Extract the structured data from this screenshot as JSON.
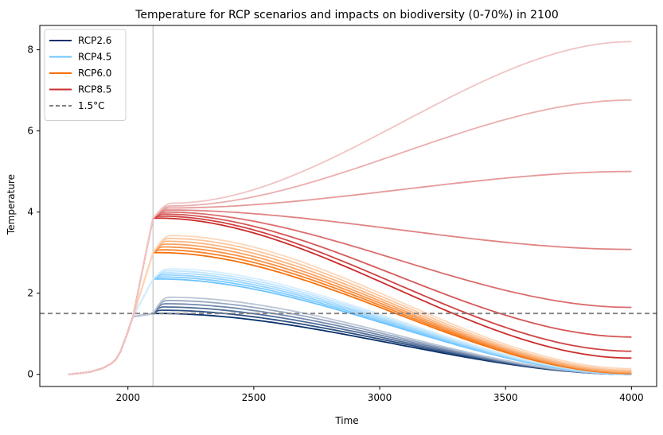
{
  "chart_data": {
    "type": "line",
    "title": "Temperature for RCP scenarios and impacts on biodiversity (0-70%) in 2100",
    "xlabel": "Time",
    "ylabel": "Temperature",
    "xlim": [
      1650,
      4100
    ],
    "ylim": [
      -0.3,
      8.6
    ],
    "xticks": [
      2000,
      2500,
      3000,
      3500,
      4000
    ],
    "yticks": [
      0,
      2,
      4,
      6,
      8
    ],
    "grid": false,
    "legend_position": "upper-left",
    "vline_x": 2100,
    "reference_line": {
      "name": "1.5°C",
      "y": 1.5,
      "style": "dashed",
      "color": "#808080"
    },
    "historical": {
      "x": [
        1765,
        1800,
        1850,
        1900,
        1930,
        1950,
        1970,
        1985,
        2000,
        2010,
        2020,
        2030,
        2040
      ],
      "y": [
        0.0,
        0.02,
        0.06,
        0.15,
        0.25,
        0.35,
        0.55,
        0.8,
        1.05,
        1.25,
        1.42,
        1.55,
        1.62
      ]
    },
    "series": [
      {
        "name": "RCP2.6",
        "color": "#08306b",
        "t2100": 1.5,
        "members": [
          {
            "peak": 1.5,
            "y_end": 0.0
          },
          {
            "peak": 1.58,
            "y_end": 0.0
          },
          {
            "peak": 1.66,
            "y_end": 0.0
          },
          {
            "peak": 1.74,
            "y_end": 0.0
          },
          {
            "peak": 1.82,
            "y_end": 0.0
          },
          {
            "peak": 1.9,
            "y_end": 0.0
          }
        ]
      },
      {
        "name": "RCP4.5",
        "color": "#6cc3ff",
        "t2100": 2.35,
        "members": [
          {
            "peak": 2.35,
            "y_end": 0.0
          },
          {
            "peak": 2.4,
            "y_end": 0.0
          },
          {
            "peak": 2.45,
            "y_end": 0.01
          },
          {
            "peak": 2.5,
            "y_end": 0.01
          },
          {
            "peak": 2.55,
            "y_end": 0.02
          },
          {
            "peak": 2.6,
            "y_end": 0.03
          }
        ]
      },
      {
        "name": "RCP6.0",
        "color": "#f5700a",
        "t2100": 3.0,
        "members": [
          {
            "peak": 3.0,
            "y_end": 0.02
          },
          {
            "peak": 3.07,
            "y_end": 0.03
          },
          {
            "peak": 3.14,
            "y_end": 0.04
          },
          {
            "peak": 3.21,
            "y_end": 0.05
          },
          {
            "peak": 3.28,
            "y_end": 0.07
          },
          {
            "peak": 3.35,
            "y_end": 0.1
          },
          {
            "peak": 3.42,
            "y_end": 0.14
          }
        ]
      },
      {
        "name": "RCP8.5",
        "color": "#cb2c2c",
        "t2100": 3.85,
        "members": [
          {
            "peak": 3.85,
            "y_end": 0.4
          },
          {
            "peak": 3.9,
            "y_end": 0.57
          },
          {
            "peak": 3.95,
            "y_end": 0.92
          },
          {
            "peak": 4.0,
            "y_end": 1.65
          },
          {
            "peak": 4.05,
            "y_end": 3.08
          },
          {
            "peak": 4.1,
            "y_end": 5.0
          },
          {
            "peak": 4.15,
            "y_end": 6.76
          },
          {
            "peak": 4.22,
            "y_end": 8.2
          }
        ]
      }
    ]
  }
}
